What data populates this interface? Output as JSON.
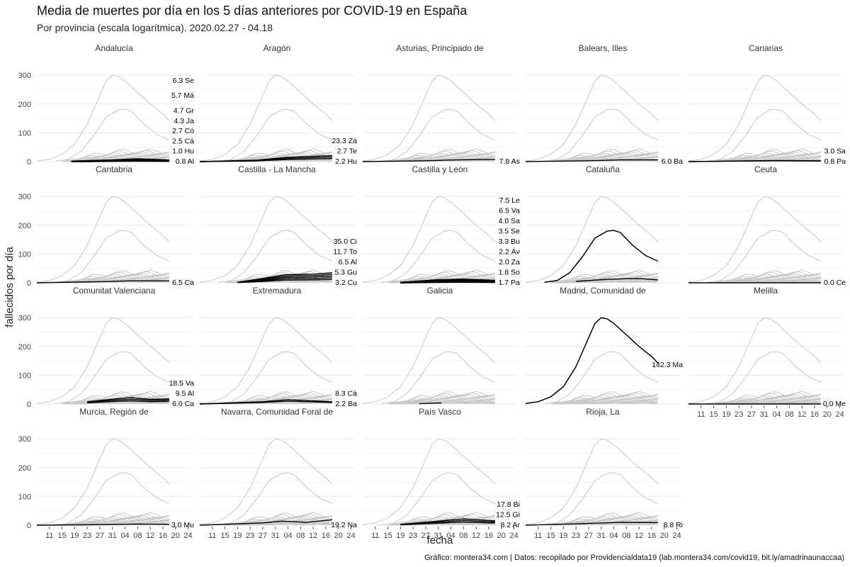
{
  "title": "Media de muertes por día en los 5 días anteriores por COVID-19 en España",
  "subtitle": "Por provincia (escala logarítmica). 2020.02.27 - 04.18",
  "caption": "Gráfico: montera34.com | Datos: recopilado por Providencialdata19 (lab.montera34.com/covid19, bit.ly/amadrinaunaccaa)",
  "colors": {
    "background_line": "#c8c8c8",
    "highlight_line": "#000000",
    "grid": "#ebebeb"
  },
  "chart_data": {
    "type": "line",
    "facet_by": "comunidad autónoma",
    "xlabel": "fecha",
    "ylabel": "fallecidos por día",
    "ylim": [
      0,
      320
    ],
    "yticks": [
      0,
      100,
      200,
      300
    ],
    "xlim": [
      "2020-03-07",
      "2020-04-25"
    ],
    "xticks": [
      "2020-03-11",
      "2020-03-15",
      "2020-03-19",
      "2020-03-23",
      "2020-03-27",
      "2020-03-31",
      "2020-04-04",
      "2020-04-08",
      "2020-04-12",
      "2020-04-16",
      "2020-04-20",
      "2020-04-24"
    ],
    "xtick_labels": [
      "11",
      "15",
      "19",
      "23",
      "27",
      "31",
      "04",
      "08",
      "12",
      "16",
      "20",
      "24"
    ],
    "grid": true,
    "background_series": {
      "note_color": "grey",
      "madrid_curve": {
        "x": [
          "2020-03-07",
          "2020-03-11",
          "2020-03-15",
          "2020-03-19",
          "2020-03-23",
          "2020-03-27",
          "2020-03-29",
          "2020-03-31",
          "2020-04-02",
          "2020-04-04",
          "2020-04-08",
          "2020-04-12",
          "2020-04-16",
          "2020-04-18"
        ],
        "y": [
          2,
          8,
          25,
          60,
          130,
          230,
          280,
          300,
          295,
          280,
          240,
          200,
          165,
          142
        ]
      },
      "barcelona_curve": {
        "x": [
          "2020-03-13",
          "2020-03-17",
          "2020-03-21",
          "2020-03-25",
          "2020-03-29",
          "2020-04-02",
          "2020-04-04",
          "2020-04-06",
          "2020-04-10",
          "2020-04-14",
          "2020-04-18"
        ],
        "y": [
          2,
          8,
          35,
          90,
          155,
          180,
          182,
          175,
          130,
          95,
          75
        ]
      }
    },
    "panels": [
      {
        "name": "Andalucía",
        "series": [
          {
            "name": "Se",
            "label": "6.3 Se",
            "value": 6.3
          },
          {
            "name": "Má",
            "label": "5.7 Má",
            "value": 5.7
          },
          {
            "name": "Gr",
            "label": "4.7 Gr",
            "value": 4.7
          },
          {
            "name": "Ja",
            "label": "4.3 Ja",
            "value": 4.3
          },
          {
            "name": "Có",
            "label": "2.7 Có",
            "value": 2.7
          },
          {
            "name": "Cá",
            "label": "2.5 Cá",
            "value": 2.5
          },
          {
            "name": "Hu",
            "label": "1.0 Hu",
            "value": 1.0
          },
          {
            "name": "Al",
            "label": "0.8 Al",
            "value": 0.8
          }
        ],
        "start": "2020-03-18",
        "peak": [
          [
            "2020-03-18",
            1
          ],
          [
            "2020-03-30",
            5
          ],
          [
            "2020-04-08",
            9
          ],
          [
            "2020-04-18",
            5
          ]
        ]
      },
      {
        "name": "Aragón",
        "series": [
          {
            "name": "Za",
            "label": "23.3 Za",
            "value": 23.3
          },
          {
            "name": "Te",
            "label": "2.7 Te",
            "value": 2.7
          },
          {
            "name": "Hu",
            "label": "2.2 Hu",
            "value": 2.2
          }
        ],
        "start": "2020-03-07",
        "peak": [
          [
            "2020-03-07",
            0
          ],
          [
            "2020-03-25",
            5
          ],
          [
            "2020-04-04",
            15
          ],
          [
            "2020-04-18",
            21
          ]
        ]
      },
      {
        "name": "Asturias, Principado de",
        "series": [
          {
            "name": "As",
            "label": "7.8 As",
            "value": 7.8
          }
        ],
        "start": "2020-03-07",
        "peak": [
          [
            "2020-03-07",
            0
          ],
          [
            "2020-03-27",
            3
          ],
          [
            "2020-04-06",
            6
          ],
          [
            "2020-04-18",
            8
          ]
        ]
      },
      {
        "name": "Balears, Illes",
        "series": [
          {
            "name": "Ba",
            "label": "6.0 Ba",
            "value": 6.0
          }
        ],
        "start": "2020-03-07",
        "peak": [
          [
            "2020-03-07",
            0
          ],
          [
            "2020-03-27",
            3
          ],
          [
            "2020-04-06",
            6
          ],
          [
            "2020-04-18",
            6
          ]
        ]
      },
      {
        "name": "Canarias",
        "series": [
          {
            "name": "Sa",
            "label": "3.0 Sa",
            "value": 3.0
          },
          {
            "name": "Pa",
            "label": "0.8 Pa",
            "value": 0.8
          }
        ],
        "start": "2020-03-07",
        "peak": [
          [
            "2020-03-07",
            0
          ],
          [
            "2020-03-27",
            3
          ],
          [
            "2020-04-04",
            4
          ],
          [
            "2020-04-18",
            3
          ]
        ]
      },
      {
        "name": "Cantabria",
        "series": [
          {
            "name": "Ca",
            "label": "6.5 Ca",
            "value": 6.5
          }
        ],
        "start": "2020-03-07",
        "peak": [
          [
            "2020-03-07",
            0
          ],
          [
            "2020-03-27",
            4
          ],
          [
            "2020-04-06",
            7
          ],
          [
            "2020-04-18",
            7
          ]
        ]
      },
      {
        "name": "Castilla - La Mancha",
        "series": [
          {
            "name": "Ci",
            "label": "35.0 Ci",
            "value": 35.0
          },
          {
            "name": "To",
            "label": "11.7 To",
            "value": 11.7
          },
          {
            "name": "Al",
            "label": "6.5 Al",
            "value": 6.5
          },
          {
            "name": "Gu",
            "label": "5.3 Gu",
            "value": 5.3
          },
          {
            "name": "Cu",
            "label": "3.2 Cu",
            "value": 3.2
          }
        ],
        "start": "2020-03-19",
        "peak": [
          [
            "2020-03-19",
            2
          ],
          [
            "2020-03-27",
            15
          ],
          [
            "2020-04-03",
            28
          ],
          [
            "2020-04-12",
            30
          ],
          [
            "2020-04-18",
            35
          ]
        ]
      },
      {
        "name": "Castilla y León",
        "series": [
          {
            "name": "Le",
            "label": "7.5 Le",
            "value": 7.5
          },
          {
            "name": "Va",
            "label": "6.5 Va",
            "value": 6.5
          },
          {
            "name": "Sa",
            "label": "4.0 Sa",
            "value": 4.0
          },
          {
            "name": "Se",
            "label": "3.5 Se",
            "value": 3.5
          },
          {
            "name": "Bu",
            "label": "3.3 Bu",
            "value": 3.3
          },
          {
            "name": "Áv",
            "label": "2.2 Áv",
            "value": 2.2
          },
          {
            "name": "Za",
            "label": "2.0 Za",
            "value": 2.0
          },
          {
            "name": "So",
            "label": "1.8 So",
            "value": 1.8
          },
          {
            "name": "Pa",
            "label": "1.7 Pa",
            "value": 1.7
          }
        ],
        "start": "2020-03-19",
        "peak": [
          [
            "2020-03-19",
            1
          ],
          [
            "2020-03-31",
            10
          ],
          [
            "2020-04-08",
            12
          ],
          [
            "2020-04-18",
            8
          ]
        ]
      },
      {
        "name": "Cataluña",
        "series": [],
        "highlight_curve": "barcelona",
        "start": "2020-03-23",
        "peak": [
          [
            "2020-03-23",
            5
          ],
          [
            "2020-04-02",
            12
          ],
          [
            "2020-04-12",
            15
          ],
          [
            "2020-04-18",
            10
          ]
        ]
      },
      {
        "name": "Ceuta",
        "series": [
          {
            "name": "Ce",
            "label": "0.0 Ce",
            "value": 0.0
          }
        ],
        "start": "2020-03-07",
        "peak": [
          [
            "2020-03-07",
            0
          ],
          [
            "2020-04-18",
            0
          ]
        ]
      },
      {
        "name": "Comunitat Valenciana",
        "series": [
          {
            "name": "Va",
            "label": "18.5 Va",
            "value": 18.5
          },
          {
            "name": "Al",
            "label": "9.5 Al",
            "value": 9.5
          },
          {
            "name": "Ca",
            "label": "6.0 Ca",
            "value": 6.0
          }
        ],
        "start": "2020-03-23",
        "peak": [
          [
            "2020-03-23",
            8
          ],
          [
            "2020-04-01",
            18
          ],
          [
            "2020-04-06",
            22
          ],
          [
            "2020-04-12",
            16
          ],
          [
            "2020-04-18",
            18
          ]
        ]
      },
      {
        "name": "Extremadura",
        "series": [
          {
            "name": "Cá",
            "label": "8.3 Cá",
            "value": 8.3
          },
          {
            "name": "Ba",
            "label": "2.2 Ba",
            "value": 2.2
          }
        ],
        "start": "2020-03-07",
        "peak": [
          [
            "2020-03-07",
            0
          ],
          [
            "2020-03-27",
            8
          ],
          [
            "2020-04-04",
            15
          ],
          [
            "2020-04-18",
            8
          ]
        ]
      },
      {
        "name": "Galicia",
        "series": [],
        "start": "2020-03-25",
        "peak": [
          [
            "2020-03-25",
            1
          ],
          [
            "2020-04-01",
            4
          ]
        ]
      },
      {
        "name": "Madrid, Comunidad de",
        "series": [
          {
            "name": "Ma",
            "label": "142.3 Ma",
            "value": 142.3
          }
        ],
        "highlight_curve": "madrid",
        "start": "2020-03-07",
        "peak": []
      },
      {
        "name": "Melilla",
        "series": [
          {
            "name": "Me",
            "label": "0.0 Me",
            "value": 0.0
          }
        ],
        "start": "2020-03-07",
        "peak": [
          [
            "2020-03-07",
            0
          ],
          [
            "2020-04-18",
            0
          ]
        ]
      },
      {
        "name": "Murcia, Región de",
        "series": [
          {
            "name": "Mu",
            "label": "3.0 Mu",
            "value": 3.0
          }
        ],
        "start": "2020-03-07",
        "peak": [
          [
            "2020-03-07",
            0
          ],
          [
            "2020-03-29",
            2
          ],
          [
            "2020-04-08",
            4
          ],
          [
            "2020-04-18",
            3
          ]
        ]
      },
      {
        "name": "Navarra, Comunidad Foral de",
        "series": [
          {
            "name": "Na",
            "label": "19.2 Na",
            "value": 19.2
          }
        ],
        "start": "2020-03-07",
        "peak": [
          [
            "2020-03-07",
            0
          ],
          [
            "2020-03-27",
            8
          ],
          [
            "2020-04-02",
            14
          ],
          [
            "2020-04-10",
            10
          ],
          [
            "2020-04-18",
            19
          ]
        ]
      },
      {
        "name": "País Vasco",
        "series": [
          {
            "name": "Bi",
            "label": "17.8 Bi",
            "value": 17.8
          },
          {
            "name": "Gi",
            "label": "12.5 Gi",
            "value": 12.5
          },
          {
            "name": "Ar",
            "label": "8.2 Ar",
            "value": 8.2
          }
        ],
        "start": "2020-03-19",
        "peak": [
          [
            "2020-03-19",
            3
          ],
          [
            "2020-03-29",
            12
          ],
          [
            "2020-04-08",
            22
          ],
          [
            "2020-04-18",
            15
          ]
        ]
      },
      {
        "name": "Rioja, La",
        "series": [
          {
            "name": "Ri",
            "label": "8.8 Ri",
            "value": 8.8
          }
        ],
        "start": "2020-03-07",
        "peak": [
          [
            "2020-03-07",
            0
          ],
          [
            "2020-03-27",
            6
          ],
          [
            "2020-04-06",
            10
          ],
          [
            "2020-04-18",
            9
          ]
        ]
      }
    ]
  }
}
